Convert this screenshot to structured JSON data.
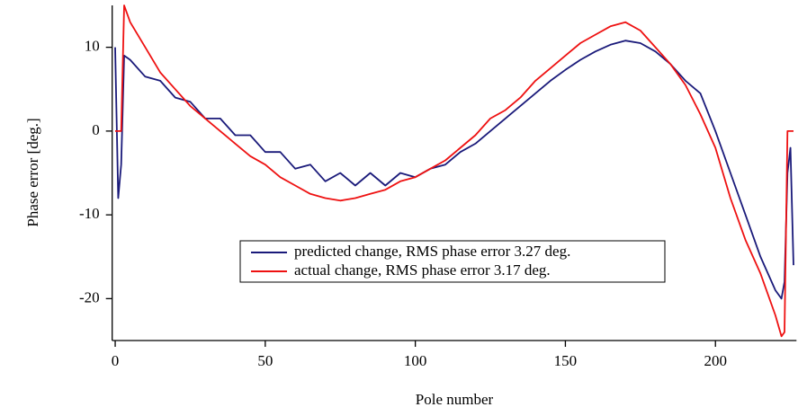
{
  "chart_data": {
    "type": "line",
    "xlabel": "Pole number",
    "ylabel": "Phase error [deg.]",
    "x": [
      0,
      1,
      2,
      3,
      5,
      10,
      15,
      20,
      25,
      30,
      35,
      40,
      45,
      50,
      55,
      60,
      65,
      70,
      75,
      80,
      85,
      90,
      95,
      100,
      105,
      110,
      115,
      120,
      125,
      130,
      135,
      140,
      145,
      150,
      155,
      160,
      165,
      170,
      175,
      180,
      185,
      190,
      195,
      200,
      205,
      210,
      215,
      220,
      222,
      223,
      224,
      225,
      226
    ],
    "series": [
      {
        "name": "predicted change, RMS phase error 3.27 deg.",
        "color": "#1a1a7a",
        "values": [
          10,
          -8,
          -4,
          9,
          8.5,
          6.5,
          6,
          4,
          3.5,
          1.5,
          1.5,
          -0.5,
          -0.5,
          -2.5,
          -2.5,
          -4.5,
          -4,
          -6,
          -5,
          -6.5,
          -5,
          -6.5,
          -5,
          -5.5,
          -4.5,
          -4,
          -2.5,
          -1.5,
          0,
          1.5,
          3,
          4.5,
          6,
          7.3,
          8.5,
          9.5,
          10.3,
          10.8,
          10.5,
          9.5,
          8,
          6,
          4.5,
          0,
          -5,
          -10,
          -15,
          -19,
          -20,
          -18,
          -5,
          -2,
          -16
        ]
      },
      {
        "name": "actual change, RMS phase error 3.17 deg.",
        "color": "#ee1111",
        "values": [
          0,
          0,
          0,
          15,
          13,
          10,
          7,
          5,
          3,
          1.5,
          0,
          -1.5,
          -3,
          -4,
          -5.5,
          -6.5,
          -7.5,
          -8,
          -8.3,
          -8,
          -7.5,
          -7,
          -6,
          -5.5,
          -4.5,
          -3.5,
          -2,
          -0.5,
          1.5,
          2.5,
          4,
          6,
          7.5,
          9,
          10.5,
          11.5,
          12.5,
          13,
          12,
          10,
          8,
          5.5,
          2,
          -2,
          -8,
          -13,
          -17,
          -22,
          -24.5,
          -24,
          0,
          0,
          0
        ]
      }
    ],
    "xlim": [
      -1,
      227
    ],
    "xticks": [
      0,
      50,
      100,
      150,
      200
    ],
    "ylim": [
      -25,
      15
    ],
    "yticks": [
      -20,
      -10,
      0,
      10
    ],
    "grid": false,
    "legend": "lower center"
  }
}
